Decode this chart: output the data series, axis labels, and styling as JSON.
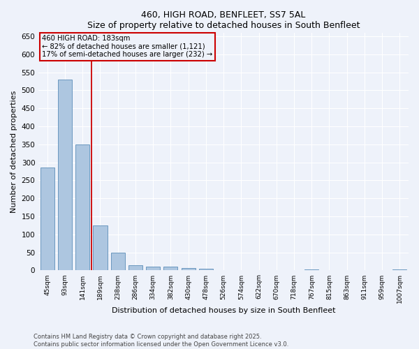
{
  "title": "460, HIGH ROAD, BENFLEET, SS7 5AL",
  "subtitle": "Size of property relative to detached houses in South Benfleet",
  "xlabel": "Distribution of detached houses by size in South Benfleet",
  "ylabel": "Number of detached properties",
  "categories": [
    "45sqm",
    "93sqm",
    "141sqm",
    "189sqm",
    "238sqm",
    "286sqm",
    "334sqm",
    "382sqm",
    "430sqm",
    "478sqm",
    "526sqm",
    "574sqm",
    "622sqm",
    "670sqm",
    "718sqm",
    "767sqm",
    "815sqm",
    "863sqm",
    "911sqm",
    "959sqm",
    "1007sqm"
  ],
  "values": [
    285,
    530,
    350,
    125,
    50,
    15,
    10,
    10,
    7,
    4,
    0,
    0,
    0,
    0,
    0,
    3,
    0,
    0,
    0,
    0,
    3
  ],
  "bar_color": "#adc6e0",
  "bar_edge_color": "#5b8db8",
  "vline_color": "#cc0000",
  "annotation_text": "460 HIGH ROAD: 183sqm\n← 82% of detached houses are smaller (1,121)\n17% of semi-detached houses are larger (232) →",
  "annotation_box_color": "#cc0000",
  "annotation_text_color": "#000000",
  "ylim": [
    0,
    660
  ],
  "yticks": [
    0,
    50,
    100,
    150,
    200,
    250,
    300,
    350,
    400,
    450,
    500,
    550,
    600,
    650
  ],
  "footer_line1": "Contains HM Land Registry data © Crown copyright and database right 2025.",
  "footer_line2": "Contains public sector information licensed under the Open Government Licence v3.0.",
  "background_color": "#eef2fa",
  "grid_color": "#ffffff"
}
